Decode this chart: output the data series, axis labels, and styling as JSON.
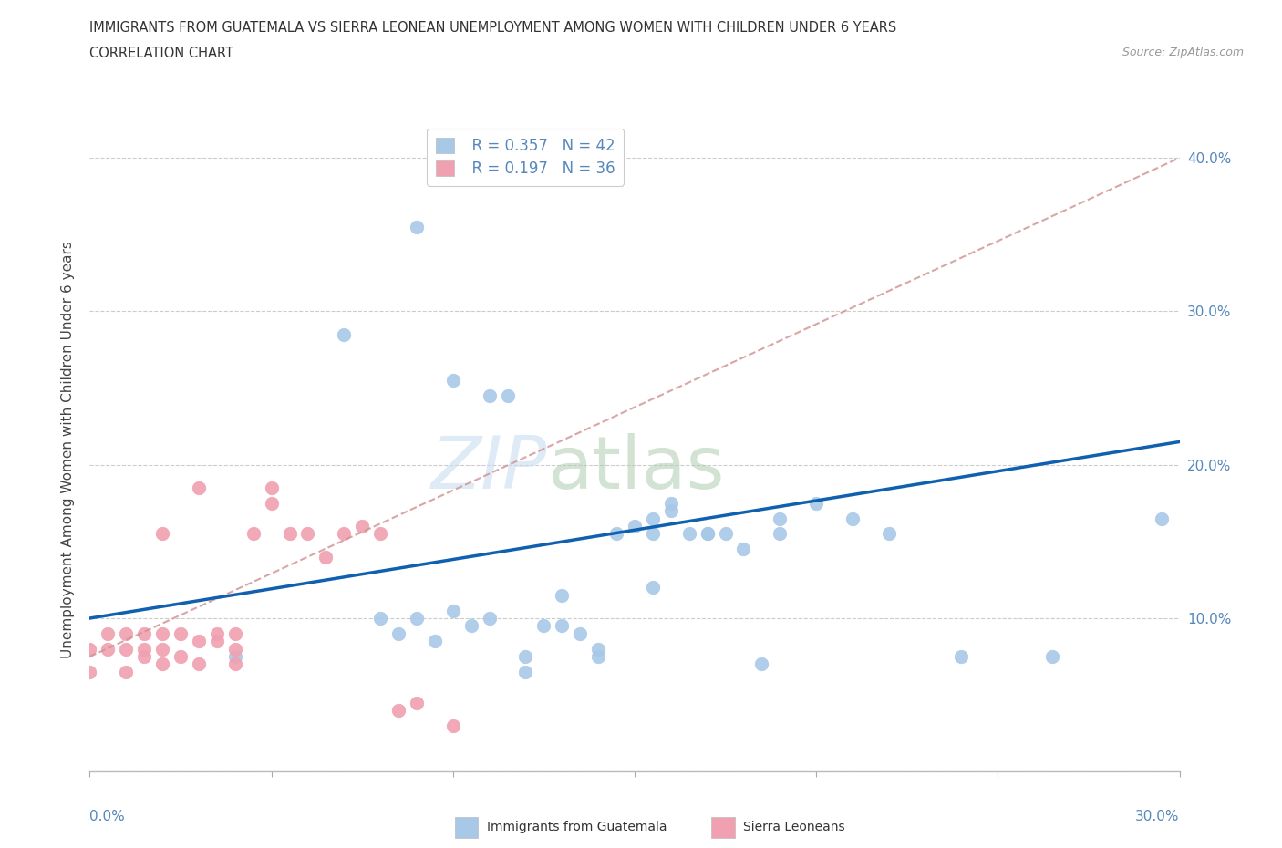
{
  "title_line1": "IMMIGRANTS FROM GUATEMALA VS SIERRA LEONEAN UNEMPLOYMENT AMONG WOMEN WITH CHILDREN UNDER 6 YEARS",
  "title_line2": "CORRELATION CHART",
  "source": "Source: ZipAtlas.com",
  "ylabel": "Unemployment Among Women with Children Under 6 years",
  "legend_blue_r": "R = 0.357",
  "legend_blue_n": "N = 42",
  "legend_pink_r": "R = 0.197",
  "legend_pink_n": "N = 36",
  "blue_color": "#A8C8E8",
  "pink_color": "#F0A0B0",
  "blue_line_color": "#1060B0",
  "pink_line_color": "#D09090",
  "xlim": [
    0.0,
    0.3
  ],
  "ylim": [
    0.0,
    0.42
  ],
  "yticks": [
    0.0,
    0.1,
    0.2,
    0.3,
    0.4
  ],
  "ytick_labels": [
    "",
    "10.0%",
    "20.0%",
    "30.0%",
    "40.0%"
  ],
  "blue_scatter_x": [
    0.04,
    0.07,
    0.09,
    0.1,
    0.11,
    0.115,
    0.12,
    0.125,
    0.13,
    0.135,
    0.14,
    0.145,
    0.15,
    0.155,
    0.155,
    0.16,
    0.165,
    0.17,
    0.175,
    0.18,
    0.185,
    0.19,
    0.19,
    0.2,
    0.21,
    0.22,
    0.24,
    0.265,
    0.295,
    0.08,
    0.085,
    0.09,
    0.095,
    0.1,
    0.105,
    0.11,
    0.12,
    0.13,
    0.14,
    0.155,
    0.16,
    0.17
  ],
  "blue_scatter_y": [
    0.075,
    0.285,
    0.355,
    0.255,
    0.245,
    0.245,
    0.065,
    0.095,
    0.115,
    0.09,
    0.075,
    0.155,
    0.16,
    0.12,
    0.165,
    0.17,
    0.155,
    0.155,
    0.155,
    0.145,
    0.07,
    0.155,
    0.165,
    0.175,
    0.165,
    0.155,
    0.075,
    0.075,
    0.165,
    0.1,
    0.09,
    0.1,
    0.085,
    0.105,
    0.095,
    0.1,
    0.075,
    0.095,
    0.08,
    0.155,
    0.175,
    0.155
  ],
  "pink_scatter_x": [
    0.0,
    0.0,
    0.005,
    0.005,
    0.01,
    0.01,
    0.01,
    0.015,
    0.015,
    0.015,
    0.02,
    0.02,
    0.02,
    0.025,
    0.025,
    0.03,
    0.03,
    0.035,
    0.035,
    0.04,
    0.04,
    0.04,
    0.045,
    0.05,
    0.05,
    0.055,
    0.06,
    0.065,
    0.07,
    0.075,
    0.08,
    0.085,
    0.09,
    0.1,
    0.02,
    0.03
  ],
  "pink_scatter_y": [
    0.08,
    0.065,
    0.09,
    0.08,
    0.09,
    0.08,
    0.065,
    0.09,
    0.075,
    0.08,
    0.09,
    0.08,
    0.07,
    0.09,
    0.075,
    0.085,
    0.07,
    0.085,
    0.09,
    0.09,
    0.08,
    0.07,
    0.155,
    0.175,
    0.185,
    0.155,
    0.155,
    0.14,
    0.155,
    0.16,
    0.155,
    0.04,
    0.045,
    0.03,
    0.155,
    0.185
  ],
  "blue_trend_x": [
    0.0,
    0.3
  ],
  "blue_trend_y": [
    0.1,
    0.215
  ],
  "pink_trend_x": [
    0.0,
    0.3
  ],
  "pink_trend_y": [
    0.075,
    0.4
  ]
}
